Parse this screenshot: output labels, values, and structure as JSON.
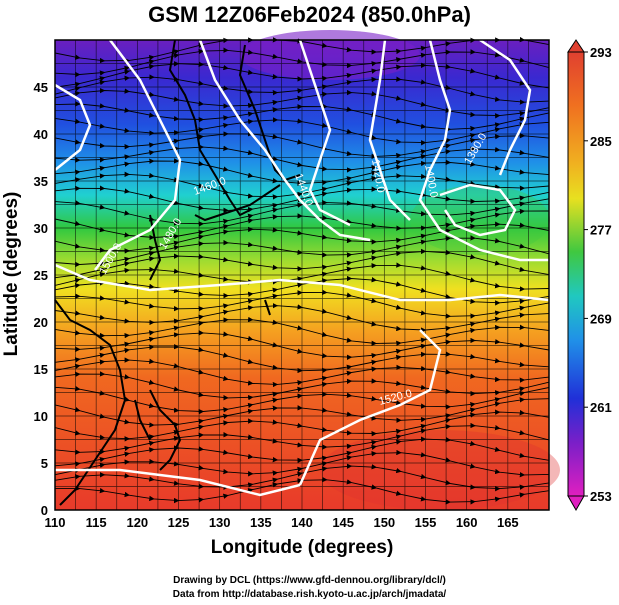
{
  "title": "GSM 12Z06Feb2024 (850.0hPa)",
  "axes": {
    "xlabel": "Longitude (degrees)",
    "ylabel": "Latitude  (degrees)",
    "x_ticks": [
      "110",
      "115",
      "120",
      "125",
      "130",
      "135",
      "140",
      "145",
      "150",
      "155",
      "160",
      "165"
    ],
    "y_ticks": [
      "0",
      "5",
      "10",
      "15",
      "20",
      "25",
      "30",
      "35",
      "40",
      "45"
    ],
    "xlim": [
      110,
      170
    ],
    "ylim": [
      0,
      50
    ]
  },
  "colorbar": {
    "labels": [
      "293",
      "285",
      "277",
      "269",
      "261",
      "253"
    ],
    "range": [
      253,
      293
    ],
    "colors": {
      "magenta": "#e01fc0",
      "purple": "#7a1fc8",
      "blue": "#1f2fd8",
      "light_blue": "#1f8fe8",
      "cyan": "#20d0e0",
      "green": "#30c830",
      "yellow_green": "#b8e030",
      "yellow": "#f0e020",
      "orange": "#f5a020",
      "red_orange": "#f06020",
      "red": "#e83a2a"
    }
  },
  "contour_labels": [
    "1380.0",
    "1400.0",
    "1420.0",
    "1440.0",
    "1460.0",
    "1480.0",
    "1500.0",
    "1520.0"
  ],
  "credits": {
    "line1": "Drawing by DCL (https://www.gfd-dennou.org/library/dcl/)",
    "line2": "Data from http://database.rish.kyoto-u.ac.jp/arch/jmadata/"
  },
  "chart_data": {
    "type": "heatmap",
    "title": "GSM 12Z06Feb2024 (850.0hPa)",
    "xlabel": "Longitude (degrees)",
    "ylabel": "Latitude  (degrees)",
    "xlim": [
      110,
      170
    ],
    "ylim": [
      0,
      50
    ],
    "colorbar_range": [
      253,
      293
    ],
    "grid": true,
    "overlays": [
      "streamlines",
      "geopotential height contours (white)",
      "coastlines"
    ],
    "temperature_bands_approx": [
      {
        "lat": 47,
        "value": 258
      },
      {
        "lat": 42,
        "value": 262
      },
      {
        "lat": 37,
        "value": 268
      },
      {
        "lat": 32,
        "value": 274
      },
      {
        "lat": 28,
        "value": 280
      },
      {
        "lat": 24,
        "value": 285
      },
      {
        "lat": 20,
        "value": 289
      },
      {
        "lat": 10,
        "value": 291
      },
      {
        "lat": 2,
        "value": 292
      }
    ]
  }
}
